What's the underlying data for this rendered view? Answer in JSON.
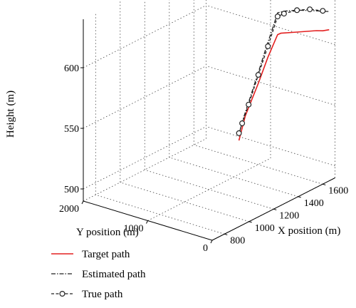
{
  "chart_data": {
    "type": "line",
    "projection": "3d",
    "xlabel": "X position (m)",
    "ylabel": "Y position (m)",
    "zlabel": "Height (m)",
    "x_ticks": [
      "800",
      "1000",
      "1200",
      "1400",
      "1600"
    ],
    "y_ticks": [
      "0",
      "1000",
      "2000"
    ],
    "z_ticks": [
      "500",
      "550",
      "600"
    ],
    "xlim": [
      700,
      1700
    ],
    "ylim": [
      0,
      2000
    ],
    "zlim": [
      490,
      640
    ],
    "grid": true,
    "legend_position": "bottom-left",
    "series": [
      {
        "name": "Target path",
        "color": "#e32020",
        "style": "solid",
        "marker": "none",
        "x": [
          1600,
          1600,
          1600,
          1600,
          1600,
          1600,
          1600,
          1600,
          1600,
          1600,
          1600
        ],
        "y": [
          1300,
          1200,
          1000,
          850,
          700,
          650,
          400,
          250,
          100,
          0,
          -100
        ],
        "z": [
          505,
          527,
          557,
          581,
          602,
          604,
          609,
          612,
          615,
          616.5,
          619
        ]
      },
      {
        "name": "Estimated path",
        "color": "#222222",
        "style": "dashdot",
        "marker": "none",
        "x": [
          1600,
          1600,
          1600,
          1600,
          1600,
          1600,
          1600,
          1600,
          1600,
          1600,
          1600,
          1600
        ],
        "y": [
          1290,
          1250,
          1150,
          1000,
          880,
          750,
          700,
          600,
          400,
          200,
          50,
          -100
        ],
        "z": [
          512,
          521,
          539,
          566,
          588,
          611,
          620,
          623,
          627,
          630,
          632,
          634
        ]
      },
      {
        "name": "True path",
        "color": "#222222",
        "style": "dashed",
        "marker": "circle",
        "x": [
          1600,
          1600,
          1600,
          1600,
          1600,
          1600,
          1600,
          1600,
          1600,
          1600
        ],
        "y": [
          1300,
          1250,
          1150,
          1000,
          850,
          700,
          600,
          400,
          200,
          0
        ],
        "z": [
          511,
          520,
          537,
          564,
          590,
          617,
          621,
          627,
          631,
          633
        ]
      }
    ]
  }
}
